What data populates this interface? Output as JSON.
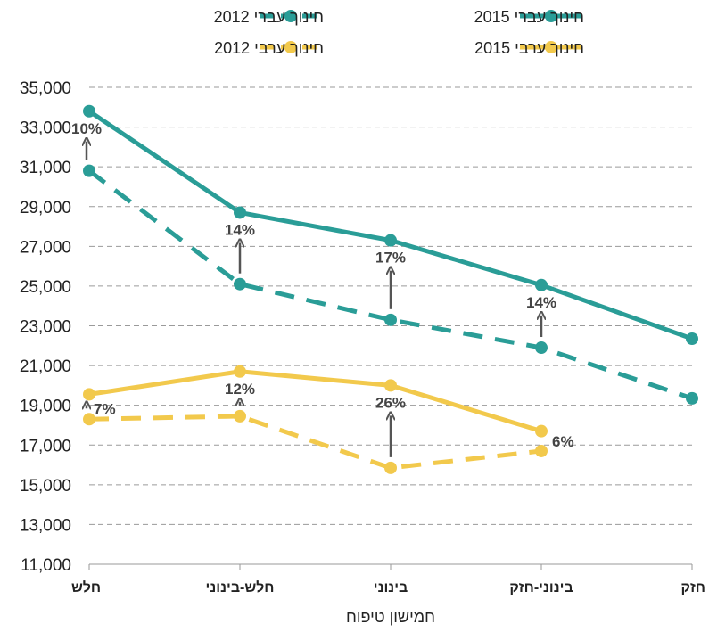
{
  "chart_data": {
    "type": "line",
    "categories": [
      "חלש",
      "חלש-בינוני",
      "בינוני",
      "בינוני-חזק",
      "חזק"
    ],
    "xlabel": "חמישון טיפוח",
    "ylabel": "",
    "ylim": [
      11000,
      35000
    ],
    "yticks": [
      "11,000",
      "13,000",
      "15,000",
      "17,000",
      "19,000",
      "21,000",
      "23,000",
      "25,000",
      "27,000",
      "29,000",
      "31,000",
      "33,000",
      "35,000"
    ],
    "grid": true,
    "legend_position": "top",
    "series": [
      {
        "name": "חינוך עברי 2015",
        "color": "#2a9d97",
        "dash": false,
        "values": [
          33800,
          28700,
          27300,
          25050,
          22350
        ]
      },
      {
        "name": "חינוך עברי 2012",
        "color": "#2a9d97",
        "dash": true,
        "values": [
          30800,
          25100,
          23300,
          21900,
          19350
        ]
      },
      {
        "name": "חינוך ערבי 2015",
        "color": "#f2c94c",
        "dash": false,
        "values": [
          19550,
          20700,
          20000,
          17700,
          null
        ]
      },
      {
        "name": "חינוך ערבי 2012",
        "color": "#f2c94c",
        "dash": true,
        "values": [
          18300,
          18450,
          15850,
          16700,
          null
        ]
      }
    ],
    "annotations": [
      {
        "label": "10%",
        "category": 0,
        "from": 30800,
        "to": 33800
      },
      {
        "label": "14%",
        "category": 1,
        "from": 25100,
        "to": 28700
      },
      {
        "label": "17%",
        "category": 2,
        "from": 23300,
        "to": 27300
      },
      {
        "label": "14%",
        "category": 3,
        "from": 21900,
        "to": 25050
      },
      {
        "label": "7%",
        "category": 0,
        "from": 18300,
        "to": 19550
      },
      {
        "label": "12%",
        "category": 1,
        "from": 18450,
        "to": 20700
      },
      {
        "label": "26%",
        "category": 2,
        "from": 15850,
        "to": 20000
      },
      {
        "label": "6%",
        "category": 3,
        "from": 16700,
        "to": 17700
      }
    ]
  }
}
